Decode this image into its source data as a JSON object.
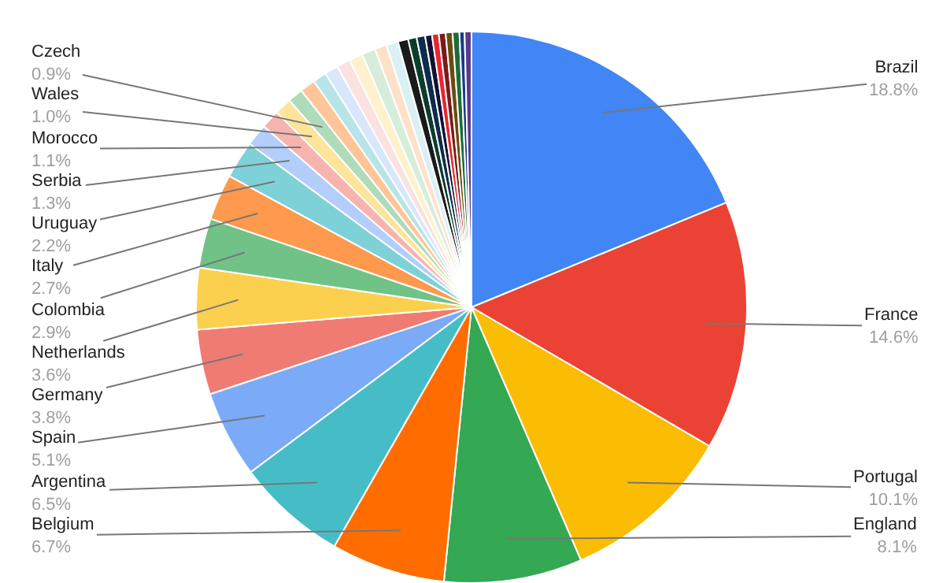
{
  "chart_data": {
    "type": "pie",
    "legend": false,
    "categories": [
      "Brazil",
      "France",
      "Portugal",
      "England",
      "Belgium",
      "Argentina",
      "Spain",
      "Germany",
      "Netherlands",
      "Colombia",
      "Italy",
      "Uruguay",
      "Serbia",
      "Morocco",
      "Wales",
      "Czech",
      null,
      null,
      null,
      null,
      null,
      null,
      null,
      null,
      null,
      null,
      null,
      null,
      null,
      null,
      null,
      null,
      null,
      null
    ],
    "values": [
      18.8,
      14.6,
      10.1,
      8.1,
      6.7,
      6.5,
      5.1,
      3.8,
      3.6,
      2.9,
      2.7,
      2.2,
      1.3,
      1.1,
      1.0,
      0.9,
      0.9,
      0.8,
      0.8,
      0.8,
      0.8,
      0.8,
      0.7,
      0.7,
      0.6,
      0.5,
      0.5,
      0.4,
      0.4,
      0.4,
      0.4,
      0.4,
      0.3,
      0.4
    ],
    "value_labels": [
      "18.8%",
      "14.6%",
      "10.1%",
      "8.1%",
      "6.7%",
      "6.5%",
      "5.1%",
      "3.8%",
      "3.6%",
      "2.9%",
      "2.7%",
      "2.2%",
      "1.3%",
      "1.1%",
      "1.0%",
      "0.9%",
      null,
      null,
      null,
      null,
      null,
      null,
      null,
      null,
      null,
      null,
      null,
      null,
      null,
      null,
      null,
      null,
      null,
      null
    ],
    "colors": [
      "#4285f4",
      "#ea4335",
      "#fbbc04",
      "#34a853",
      "#ff6d01",
      "#46bdc6",
      "#7baaf7",
      "#f07b72",
      "#fcd04f",
      "#71c287",
      "#ff994d",
      "#7ed1d7",
      "#b3cefb",
      "#f7b4ae",
      "#fde49b",
      "#aedcba",
      "#ffc599",
      "#b5e5e8",
      "#d9e7fd",
      "#fbe1df",
      "#fef1cd",
      "#d6eddc",
      "#ffe0c9",
      "#daf1f3",
      "#1a1a1a",
      "#0b3d2c",
      "#0d2b4e",
      "#111133",
      "#e8272f",
      "#7a1b1b",
      "#6b4c0f",
      "#1e6b3a",
      "#143c8c",
      "#5b3a8c"
    ]
  }
}
